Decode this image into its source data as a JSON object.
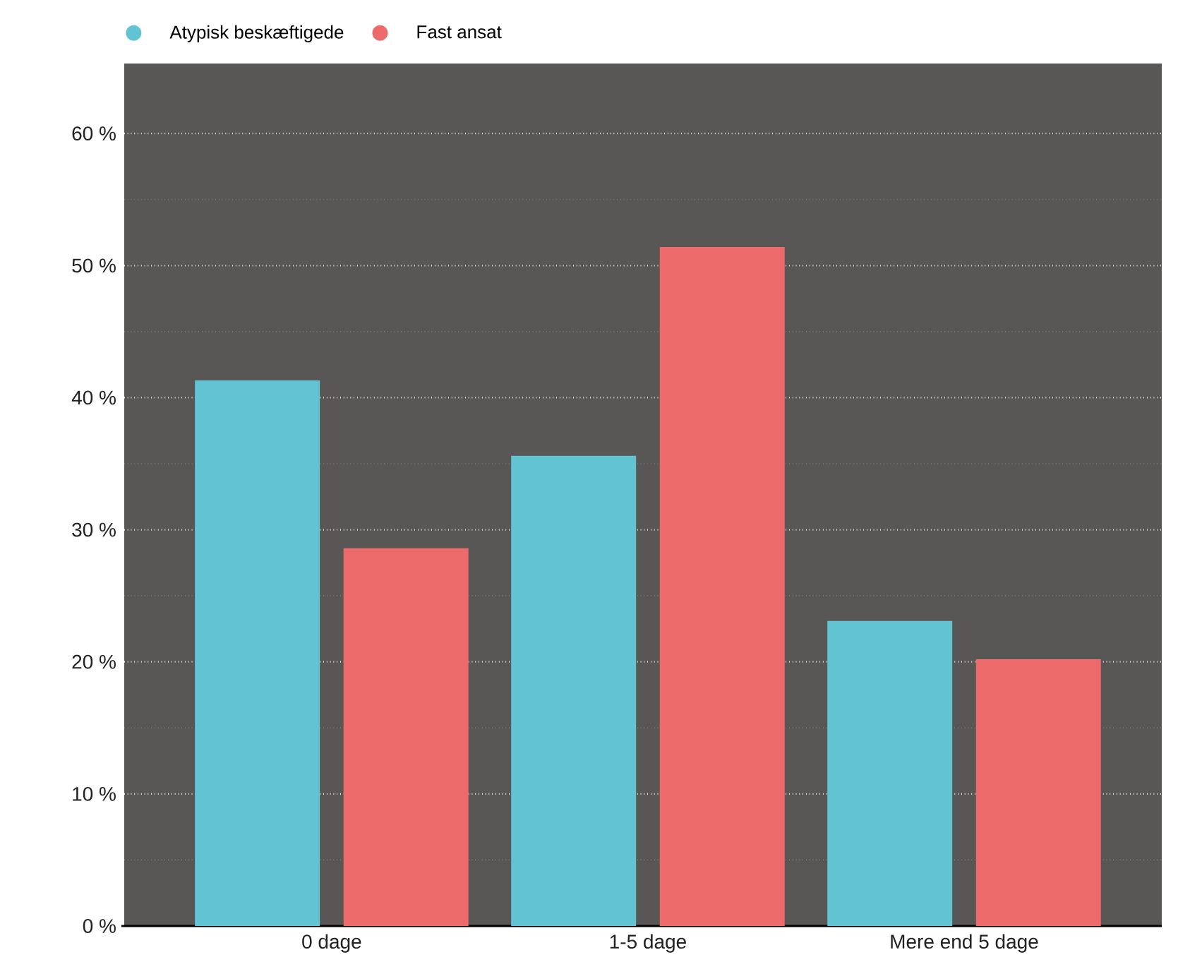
{
  "chart_data": {
    "type": "bar",
    "categories": [
      "0 dage",
      "1-5 dage",
      "Mere end 5 dage"
    ],
    "series": [
      {
        "name": "Atypisk beskæftigede",
        "color": "#62c3d3",
        "values": [
          41.3,
          35.6,
          23.1
        ]
      },
      {
        "name": "Fast ansat",
        "color": "#ec6a6a",
        "values": [
          28.6,
          51.4,
          20.2
        ]
      }
    ],
    "ylim": [
      0,
      65.3
    ],
    "yticks": [
      {
        "value": 0,
        "label": "0 %"
      },
      {
        "value": 5,
        "label": null
      },
      {
        "value": 10,
        "label": "10 %"
      },
      {
        "value": 15,
        "label": null
      },
      {
        "value": 20,
        "label": "20 %"
      },
      {
        "value": 25,
        "label": null
      },
      {
        "value": 30,
        "label": "30 %"
      },
      {
        "value": 35,
        "label": null
      },
      {
        "value": 40,
        "label": "40 %"
      },
      {
        "value": 45,
        "label": null
      },
      {
        "value": 50,
        "label": "50 %"
      },
      {
        "value": 55,
        "label": null
      },
      {
        "value": 60,
        "label": "60 %"
      }
    ],
    "grid": "y",
    "legend": "top left"
  }
}
